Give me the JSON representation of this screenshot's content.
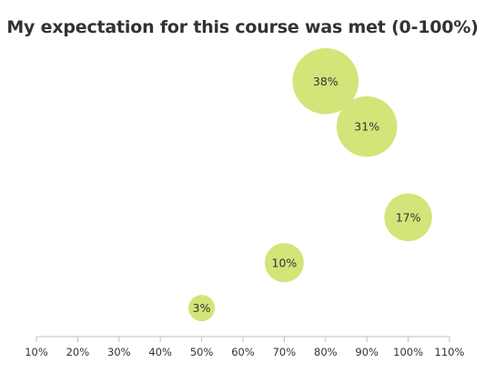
{
  "chart_data": {
    "type": "scatter",
    "title": "My expectation for this course was met (0-100%)",
    "xlabel": "",
    "ylabel": "",
    "x_ticks": [
      "10%",
      "20%",
      "30%",
      "40%",
      "50%",
      "60%",
      "70%",
      "80%",
      "90%",
      "100%",
      "110%"
    ],
    "xlim": [
      10,
      110
    ],
    "ylim": [
      0,
      40
    ],
    "grid": false,
    "bubble_color": "#d4e478",
    "points": [
      {
        "x": 50,
        "y": 3,
        "label": "3%"
      },
      {
        "x": 70,
        "y": 10,
        "label": "10%"
      },
      {
        "x": 80,
        "y": 38,
        "label": "38%"
      },
      {
        "x": 90,
        "y": 31,
        "label": "31%"
      },
      {
        "x": 100,
        "y": 17,
        "label": "17%"
      }
    ]
  }
}
